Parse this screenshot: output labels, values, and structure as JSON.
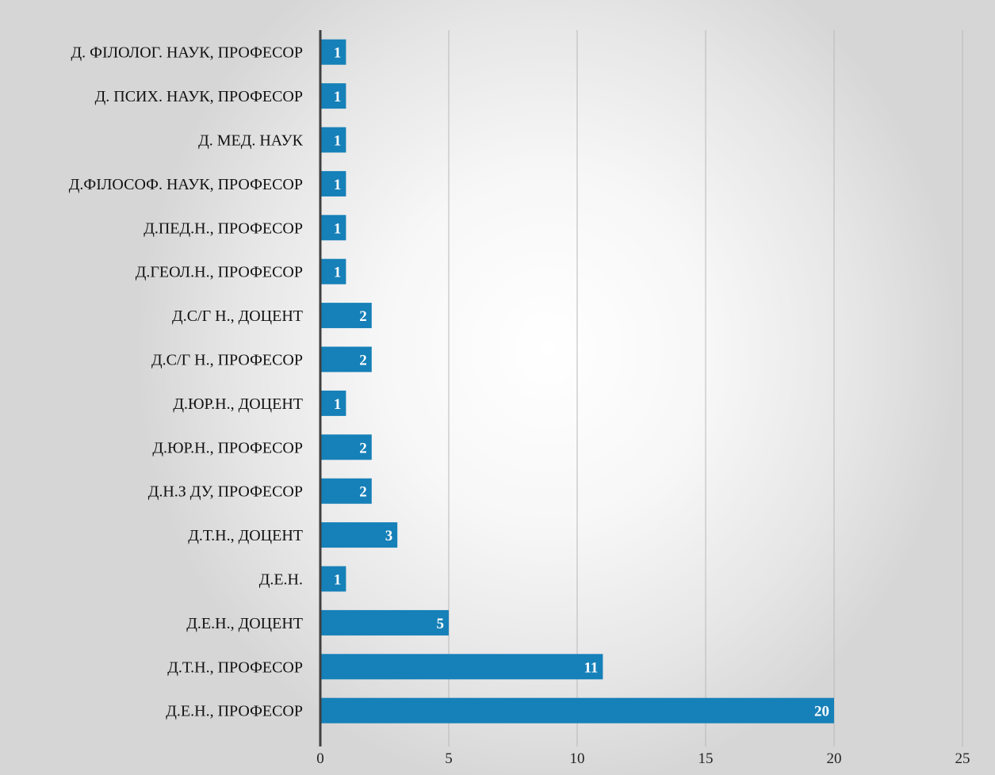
{
  "chart_data": {
    "type": "bar",
    "orientation": "horizontal",
    "categories": [
      "Д. ФІЛОЛОГ. НАУК, ПРОФЕСОР",
      "Д. ПСИХ. НАУК, ПРОФЕСОР",
      "Д. МЕД. НАУК",
      "Д.ФІЛОСОФ. НАУК, ПРОФЕСОР",
      "Д.ПЕД.Н., ПРОФЕСОР",
      "Д.ГЕОЛ.Н., ПРОФЕСОР",
      "Д.С/Г Н., ДОЦЕНТ",
      "Д.С/Г Н., ПРОФЕСОР",
      "Д.ЮР.Н., ДОЦЕНТ",
      "Д.ЮР.Н., ПРОФЕСОР",
      "Д.Н.З ДУ, ПРОФЕСОР",
      "Д.Т.Н., ДОЦЕНТ",
      "Д.Е.Н.",
      "Д.Е.Н., ДОЦЕНТ",
      "Д.Т.Н., ПРОФЕСОР",
      "Д.Е.Н., ПРОФЕСОР"
    ],
    "values": [
      1,
      1,
      1,
      1,
      1,
      1,
      2,
      2,
      1,
      2,
      2,
      3,
      1,
      5,
      11,
      20
    ],
    "data_labels": [
      "1",
      "1",
      "1",
      "1",
      "1",
      "1",
      "2",
      "2",
      "1",
      "2",
      "2",
      "3",
      "1",
      "5",
      "11",
      "20"
    ],
    "xlim": [
      0,
      25
    ],
    "x_ticks": [
      0,
      5,
      10,
      15,
      20,
      25
    ],
    "x_tick_labels": [
      "0",
      "5",
      "10",
      "15",
      "20",
      "25"
    ],
    "title": "",
    "xlabel": "",
    "ylabel": "",
    "grid": "vertical",
    "legend": "none",
    "colors": {
      "bar": "#1680b8",
      "gridline": "#b8b8b8",
      "axis": "#404040",
      "data_label": "#ffffff"
    }
  }
}
